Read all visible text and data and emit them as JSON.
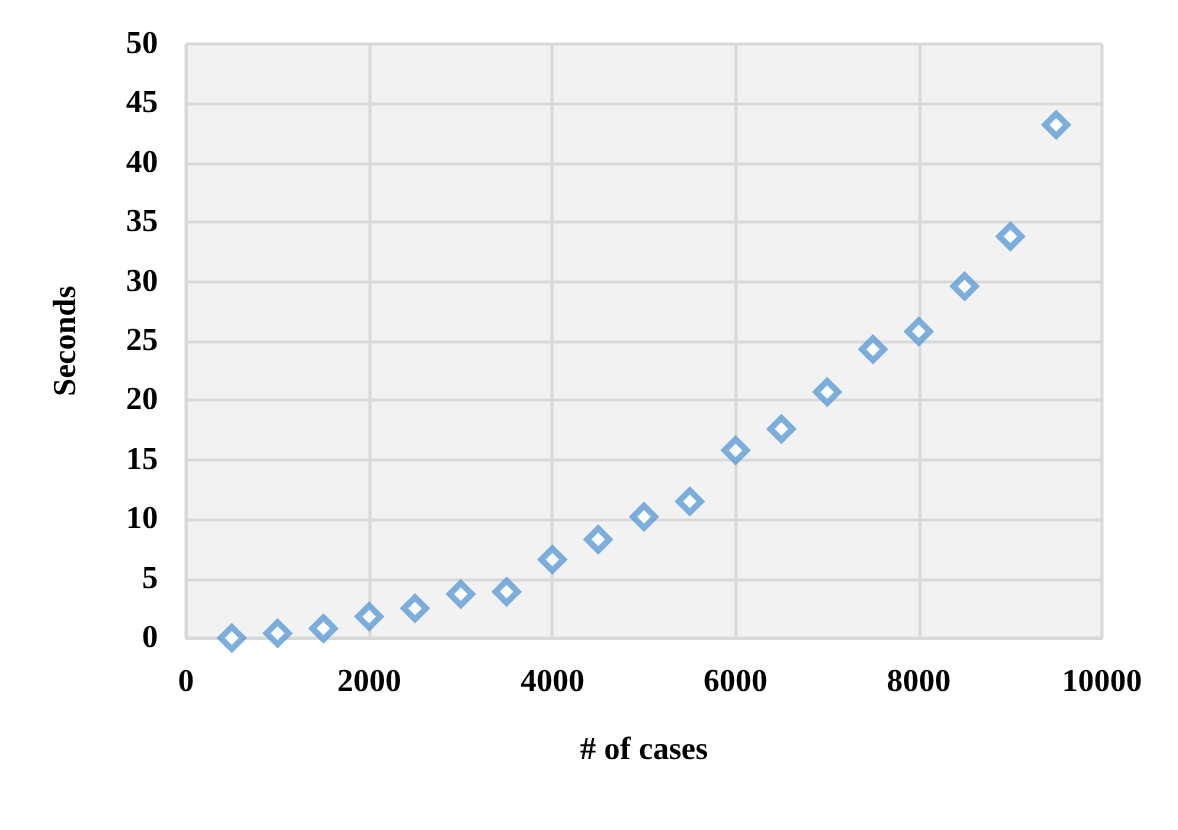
{
  "chart_data": {
    "type": "scatter",
    "xlabel": "# of cases",
    "ylabel": "Seconds",
    "x": [
      500,
      1000,
      1500,
      2000,
      2500,
      3000,
      3500,
      4000,
      4500,
      5000,
      5500,
      6000,
      6500,
      7000,
      7500,
      8000,
      8500,
      9000,
      9500
    ],
    "series": [
      {
        "color": "#5b9bd5",
        "values": [
          0,
          0.4,
          0.8,
          1.8,
          2.5,
          3.7,
          3.9,
          6.6,
          8.3,
          10.2,
          11.5,
          15.8,
          17.6,
          20.7,
          24.3,
          25.8,
          29.6,
          33.8,
          43.2
        ]
      }
    ],
    "xlim": [
      0,
      10000
    ],
    "xticks": [
      0,
      2000,
      4000,
      6000,
      8000,
      10000
    ],
    "ylim": [
      0,
      50
    ],
    "yticks": [
      0,
      5,
      10,
      15,
      20,
      25,
      30,
      35,
      40,
      45,
      50
    ],
    "grid": true,
    "marker": "diamond"
  }
}
